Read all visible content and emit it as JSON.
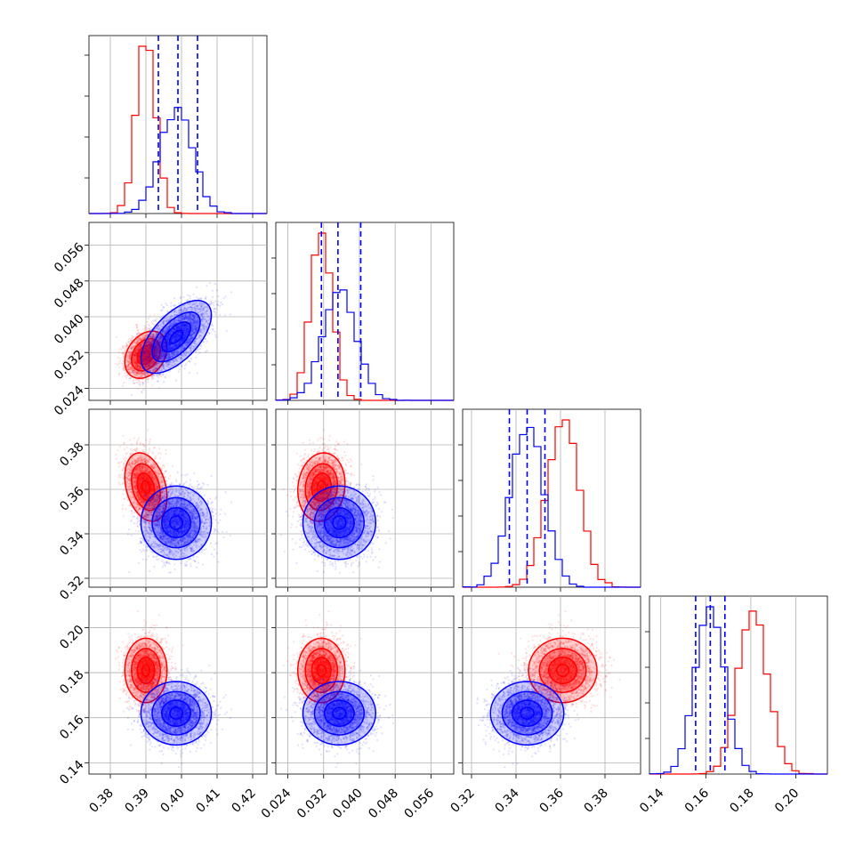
{
  "chart_data": {
    "type": "corner",
    "parameters": [
      {
        "range": [
          0.374,
          0.424
        ],
        "ticks": [
          0.38,
          0.39,
          0.4,
          0.41,
          0.42
        ],
        "tick_labels": [
          "0.38",
          "0.39",
          "0.40",
          "0.41",
          "0.42"
        ]
      },
      {
        "range": [
          0.0213,
          0.0611
        ],
        "ticks": [
          0.024,
          0.032,
          0.04,
          0.048,
          0.056
        ],
        "tick_labels": [
          "0.024",
          "0.032",
          "0.040",
          "0.048",
          "0.056"
        ]
      },
      {
        "range": [
          0.316,
          0.396
        ],
        "ticks": [
          0.32,
          0.34,
          0.36,
          0.38
        ],
        "tick_labels": [
          "0.32",
          "0.34",
          "0.36",
          "0.38"
        ]
      },
      {
        "range": [
          0.135,
          0.214
        ],
        "ticks": [
          0.14,
          0.16,
          0.18,
          0.2
        ],
        "tick_labels": [
          "0.14",
          "0.16",
          "0.18",
          "0.20"
        ]
      }
    ],
    "series": [
      {
        "color": "#ff0000",
        "means": [
          0.39,
          0.0315,
          0.361,
          0.181
        ],
        "sds": [
          0.0027,
          0.0024,
          0.007,
          0.0065
        ],
        "corr": [
          [
            0,
            1,
            0.3
          ],
          [
            0,
            2,
            -0.3
          ],
          [
            0,
            3,
            0.0
          ],
          [
            1,
            2,
            0.1
          ],
          [
            1,
            3,
            0.0
          ],
          [
            2,
            3,
            0.0
          ]
        ]
      },
      {
        "color": "#0000ff",
        "means": [
          0.3985,
          0.0355,
          0.345,
          0.162
        ],
        "sds": [
          0.0045,
          0.0037,
          0.0075,
          0.0064
        ],
        "corr": [
          [
            0,
            1,
            0.6
          ],
          [
            0,
            2,
            0.0
          ],
          [
            0,
            3,
            0.0
          ],
          [
            1,
            2,
            0.0
          ],
          [
            1,
            3,
            0.0
          ],
          [
            2,
            3,
            0.0
          ]
        ]
      }
    ],
    "quantiles": {
      "color": "#0000ff",
      "values": [
        [
          0.3935,
          0.399,
          0.4045
        ],
        [
          0.0315,
          0.0352,
          0.0403
        ],
        [
          0.337,
          0.345,
          0.353
        ],
        [
          0.1555,
          0.162,
          0.1685
        ]
      ]
    },
    "grid": true
  }
}
